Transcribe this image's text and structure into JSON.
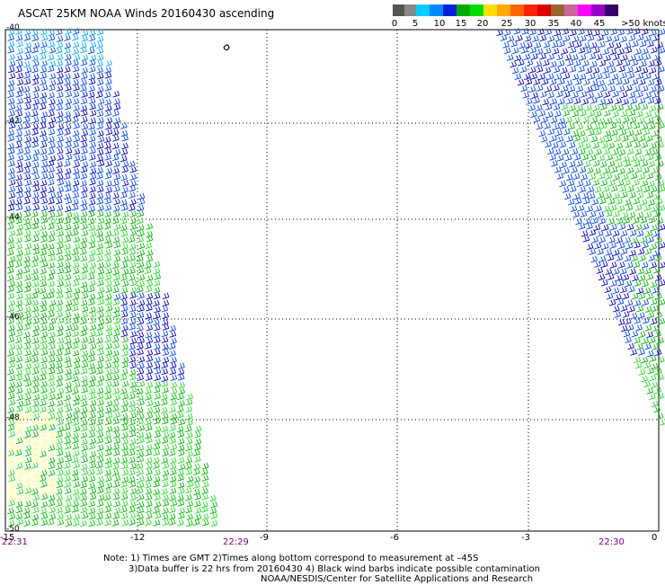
{
  "title": "ASCAT 25KM NOAA Winds 20160430 ascending",
  "legend": {
    "labels": [
      "0",
      "5",
      "10",
      "15",
      "20",
      "25",
      "30",
      "35",
      "40",
      "45",
      ">50 knots"
    ],
    "colors": [
      "#555555",
      "#888888",
      "#00ccff",
      "#0088ff",
      "#0022dd",
      "#00aa00",
      "#00dd00",
      "#ffdd00",
      "#ffaa00",
      "#ff6600",
      "#ff2200",
      "#dd0000",
      "#996633",
      "#cc6699",
      "#ff00ff",
      "#9900cc",
      "#330066"
    ]
  },
  "axes": {
    "x_ticks": [
      "-15",
      "-12",
      "-9",
      "-6",
      "-3",
      "0"
    ],
    "y_ticks": [
      "-40",
      "-42",
      "-44",
      "-46",
      "-48",
      "-50"
    ]
  },
  "times": [
    "22:31",
    "22:29",
    "22:30"
  ],
  "notes": {
    "line1": "Note: 1) Times are GMT 2)Times along bottom correspond to measurement at –45S",
    "line2": "3)Data buffer is 22 hrs from 20160430 4) Black wind barbs indicate possible contamination",
    "line3": "NOAA/NESDIS/Center for Satellite Applications and Research"
  },
  "wind_colors": {
    "blue_light": "#00aaff",
    "blue_mid": "#0044ff",
    "blue_dark": "#0000cc",
    "green": "#00bb00",
    "green_light": "#22dd22",
    "yellow": "#ffff66"
  }
}
